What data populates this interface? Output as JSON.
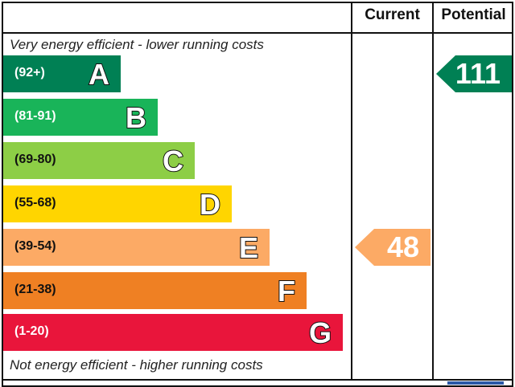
{
  "header": {
    "current_label": "Current",
    "potential_label": "Potential"
  },
  "notes": {
    "top": "Very energy efficient - lower running costs",
    "bottom": "Not energy efficient - higher running costs"
  },
  "chart_data": {
    "type": "bar",
    "categories": [
      "A",
      "B",
      "C",
      "D",
      "E",
      "F",
      "G"
    ],
    "ranges": [
      "(92+)",
      "(81-91)",
      "(69-80)",
      "(55-68)",
      "(39-54)",
      "(21-38)",
      "(1-20)"
    ],
    "colors": [
      "#008054",
      "#19b459",
      "#8dce46",
      "#ffd500",
      "#fcaa65",
      "#ef8023",
      "#e9153b"
    ],
    "range_text_colors": [
      "#ffffff",
      "#ffffff",
      "#111111",
      "#111111",
      "#111111",
      "#111111",
      "#ffffff"
    ],
    "current": {
      "value": 48,
      "band": "E",
      "color": "#fcaa65"
    },
    "potential": {
      "value": 111,
      "band": "A",
      "color": "#008054"
    }
  }
}
